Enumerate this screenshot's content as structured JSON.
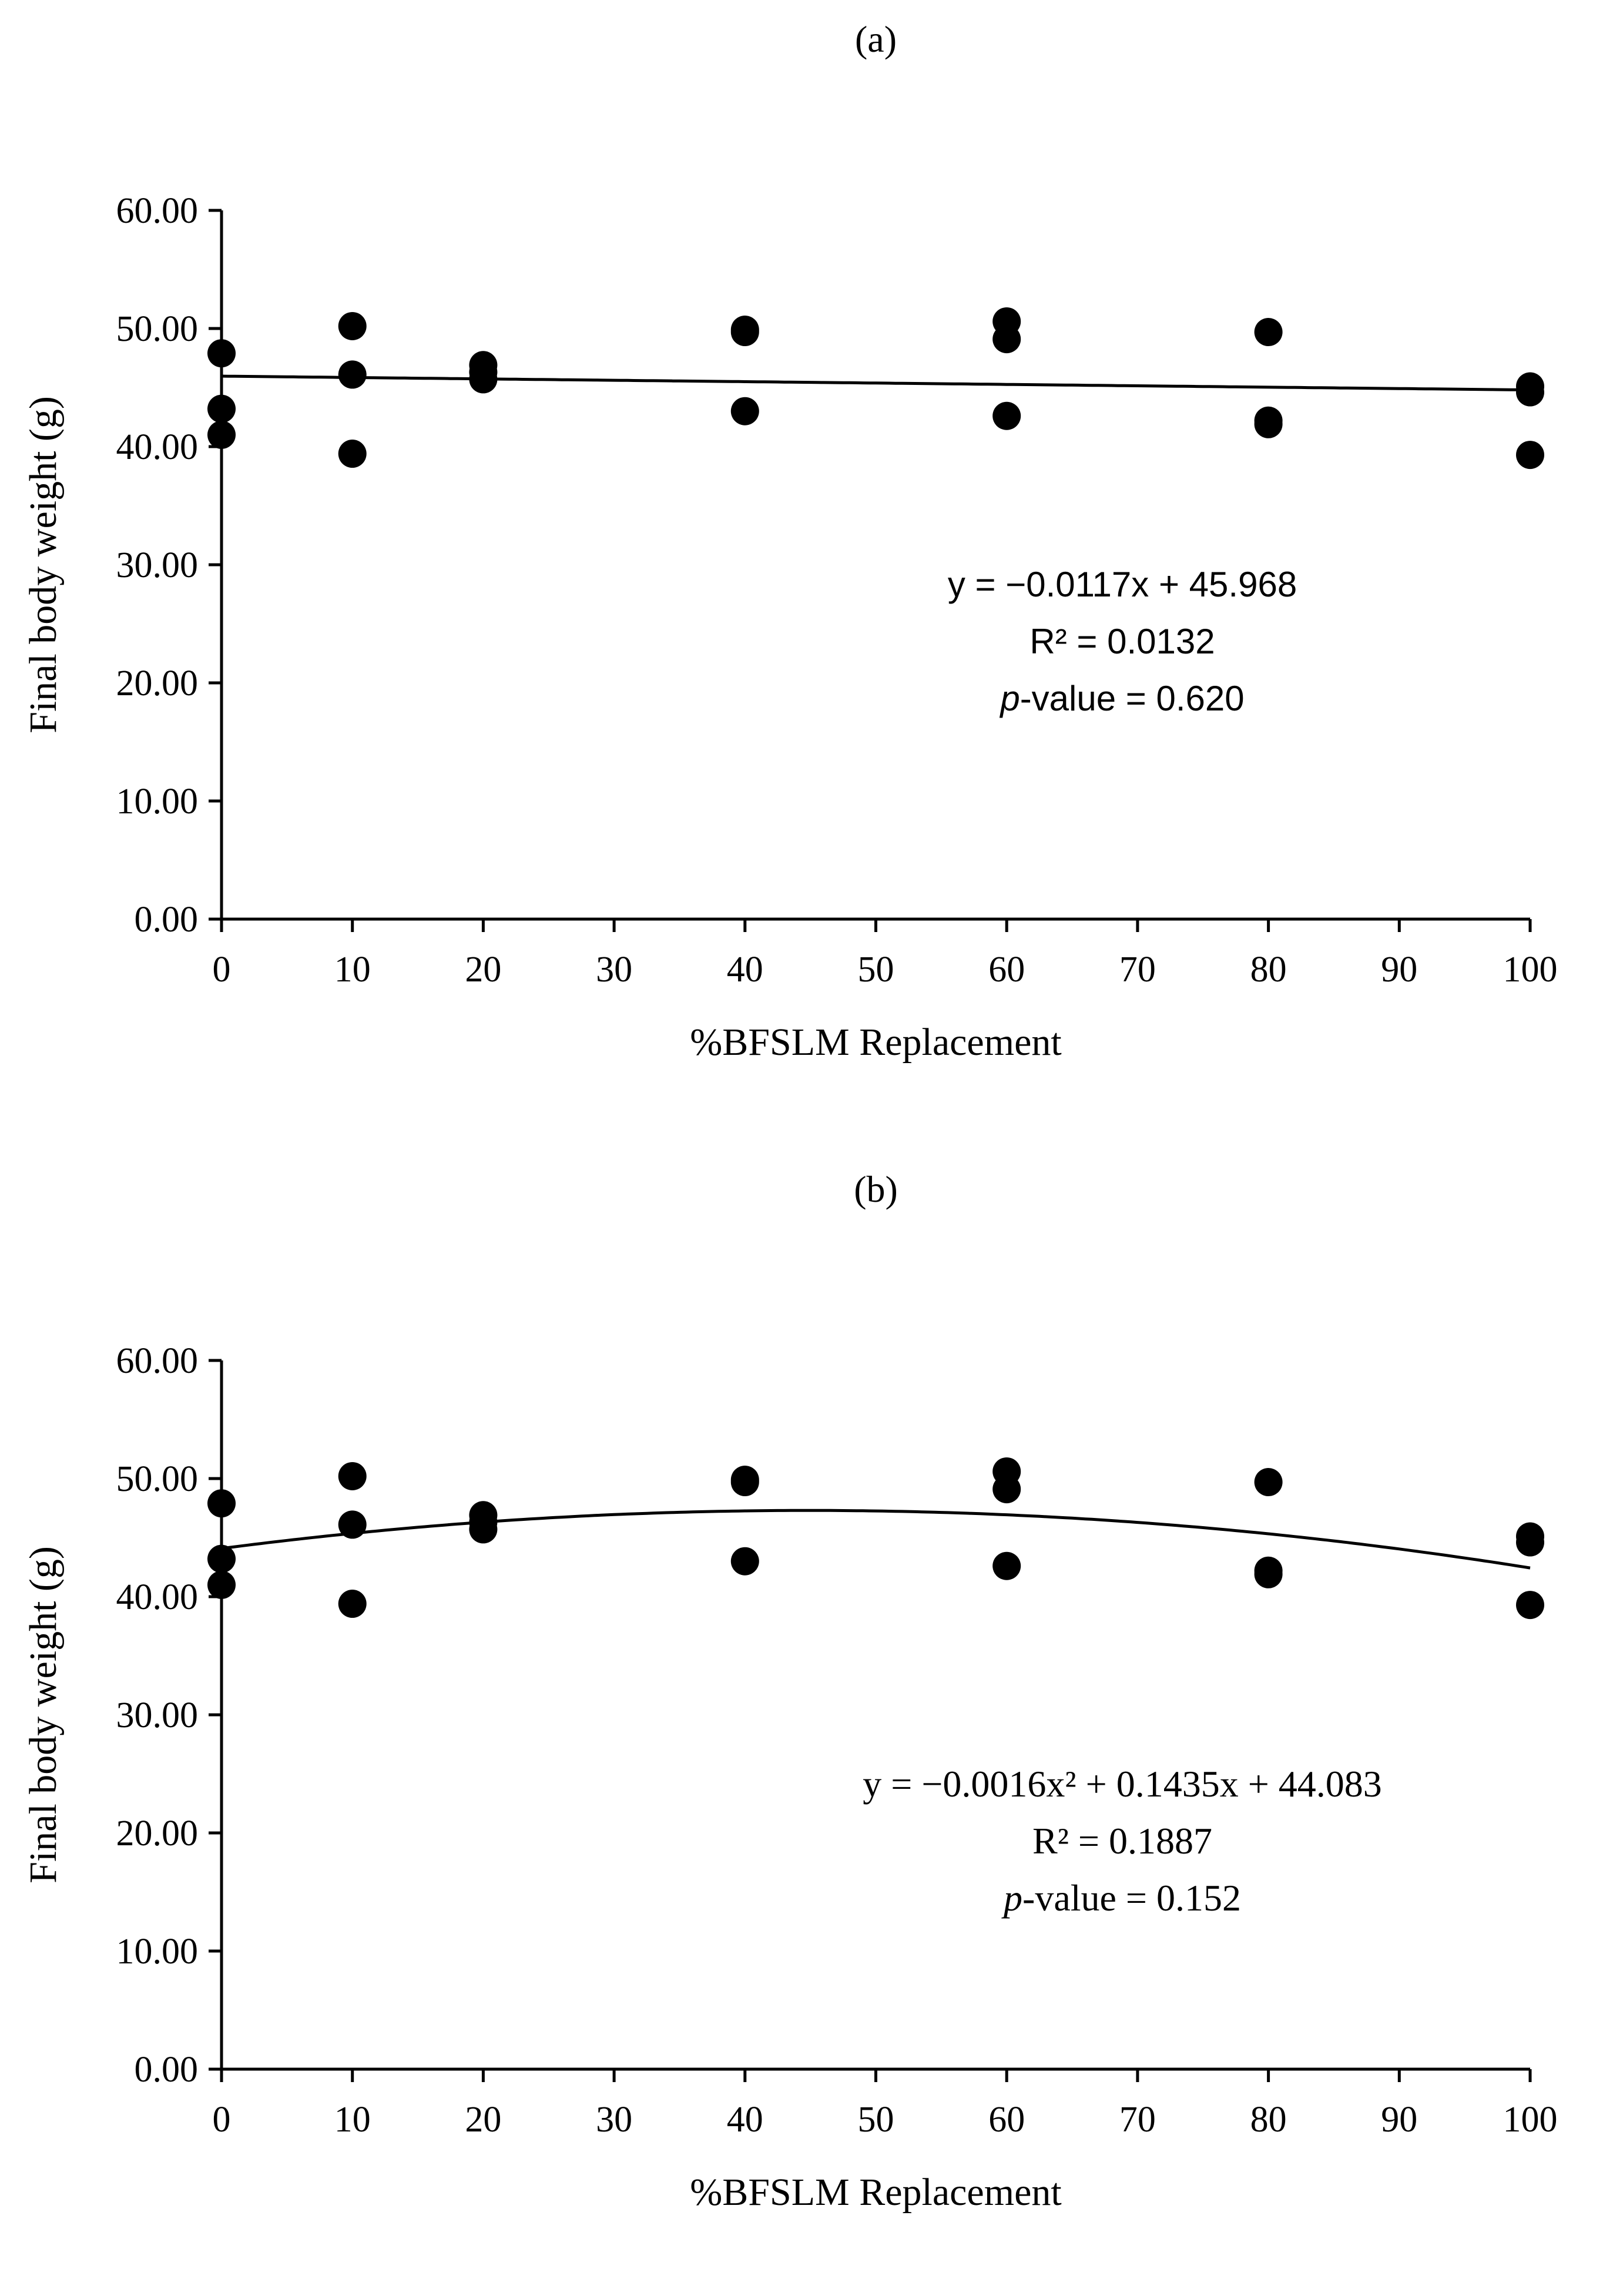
{
  "chart_data": [
    {
      "type": "scatter",
      "panel_label": "(a)",
      "title": "",
      "xlabel": "%BFSLM Replacement",
      "ylabel": "Final body weight (g)",
      "xlim": [
        0,
        100
      ],
      "ylim": [
        0,
        60
      ],
      "x_ticks": [
        0,
        10,
        20,
        30,
        40,
        50,
        60,
        70,
        80,
        90,
        100
      ],
      "x_tick_labels": [
        "0",
        "10",
        "20",
        "30",
        "40",
        "50",
        "60",
        "70",
        "80",
        "90",
        "100"
      ],
      "y_ticks": [
        0,
        10,
        20,
        30,
        40,
        50,
        60
      ],
      "y_tick_labels": [
        "0.00",
        "10.00",
        "20.00",
        "30.00",
        "40.00",
        "50.00",
        "60.00"
      ],
      "grid": false,
      "series": [
        {
          "name": "Final body weight",
          "x": [
            0,
            0,
            0,
            10,
            10,
            10,
            20,
            20,
            20,
            40,
            40,
            40,
            60,
            60,
            60,
            80,
            80,
            80,
            100,
            100,
            100
          ],
          "y": [
            47.9,
            43.2,
            41.0,
            50.2,
            46.1,
            39.4,
            46.9,
            46.3,
            45.7,
            49.9,
            49.7,
            43.0,
            50.6,
            49.1,
            42.6,
            49.7,
            42.2,
            41.9,
            45.1,
            44.6,
            39.3
          ]
        }
      ],
      "trendline": {
        "kind": "linear",
        "coefficients": {
          "a": 0,
          "b": -0.0117,
          "c": 45.968
        }
      },
      "equation_lines": [
        {
          "text": "y = −0.0117x + 45.968"
        },
        {
          "text": "R² = 0.0132"
        },
        {
          "italic": "p",
          "text": "-value = 0.620"
        }
      ]
    },
    {
      "type": "scatter",
      "panel_label": "(b)",
      "title": "",
      "xlabel": "%BFSLM Replacement",
      "ylabel": "Final body weight (g)",
      "xlim": [
        0,
        100
      ],
      "ylim": [
        0,
        60
      ],
      "x_ticks": [
        0,
        10,
        20,
        30,
        40,
        50,
        60,
        70,
        80,
        90,
        100
      ],
      "x_tick_labels": [
        "0",
        "10",
        "20",
        "30",
        "40",
        "50",
        "60",
        "70",
        "80",
        "90",
        "100"
      ],
      "y_ticks": [
        0,
        10,
        20,
        30,
        40,
        50,
        60
      ],
      "y_tick_labels": [
        "0.00",
        "10.00",
        "20.00",
        "30.00",
        "40.00",
        "50.00",
        "60.00"
      ],
      "grid": false,
      "series": [
        {
          "name": "Final body weight",
          "x": [
            0,
            0,
            0,
            10,
            10,
            10,
            20,
            20,
            20,
            40,
            40,
            40,
            60,
            60,
            60,
            80,
            80,
            80,
            100,
            100,
            100
          ],
          "y": [
            47.9,
            43.2,
            41.0,
            50.2,
            46.1,
            39.4,
            46.9,
            46.3,
            45.7,
            49.9,
            49.7,
            43.0,
            50.6,
            49.1,
            42.6,
            49.7,
            42.2,
            41.9,
            45.1,
            44.6,
            39.3
          ]
        }
      ],
      "trendline": {
        "kind": "quadratic",
        "coefficients": {
          "a": -0.0016,
          "b": 0.1435,
          "c": 44.083
        }
      },
      "equation_lines": [
        {
          "text": "y = −0.0016x² + 0.1435x + 44.083"
        },
        {
          "text": "R² = 0.1887"
        },
        {
          "italic": "p",
          "text": "-value = 0.152"
        }
      ]
    }
  ]
}
